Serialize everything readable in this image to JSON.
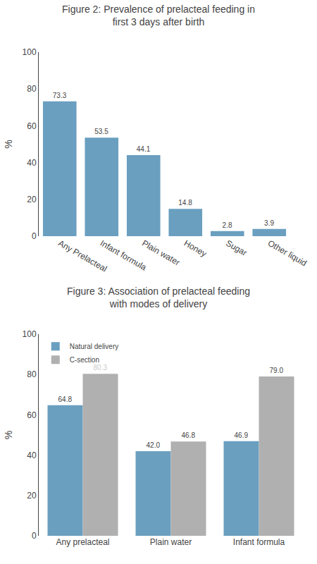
{
  "chart_data": [
    {
      "type": "bar",
      "title": "Figure 2: Prevalence of prelacteal feeding in first 3 days after birth",
      "categories": [
        "Any Prelacteal",
        "Infant formula",
        "Plain water",
        "Honey",
        "Sugar",
        "Other liquid"
      ],
      "values": [
        73.3,
        53.5,
        44.1,
        14.8,
        2.8,
        3.9
      ],
      "color": "#6a9fc0",
      "ylabel": "%",
      "ylim": [
        0,
        100
      ],
      "yticks": [
        0,
        20,
        40,
        60,
        80,
        100
      ],
      "grid": false,
      "data_labels": true
    },
    {
      "type": "bar",
      "title": "Figure 3: Association of prelacteal feeding with modes of delivery",
      "categories": [
        "Any prelacteal",
        "Plain water",
        "Infant formula"
      ],
      "series": [
        {
          "name": "Natural delivery",
          "color": "#6a9fc0",
          "values": [
            64.8,
            42.0,
            46.9
          ],
          "value_labels": [
            "64.8",
            "42.0",
            "46.9"
          ]
        },
        {
          "name": "C-section",
          "color": "#b0b0b0",
          "values": [
            80.3,
            46.8,
            79.0
          ],
          "value_labels": [
            "80.3",
            "46.8",
            "79.0"
          ]
        }
      ],
      "ylabel": "%",
      "ylim": [
        0,
        100
      ],
      "yticks": [
        0,
        20,
        40,
        60,
        80,
        100
      ],
      "grid": false,
      "legend": "upper left",
      "data_labels": true
    }
  ]
}
